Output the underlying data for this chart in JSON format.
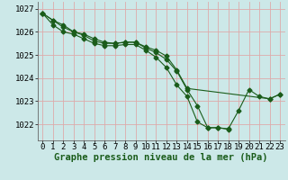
{
  "title": "Graphe pression niveau de la mer (hPa)",
  "bg_color": "#cce8e8",
  "grid_color": "#ddaaaa",
  "line_color": "#1a5c1a",
  "xlim": [
    -0.5,
    23.5
  ],
  "ylim": [
    1021.3,
    1027.3
  ],
  "yticks": [
    1022,
    1023,
    1024,
    1025,
    1026,
    1027
  ],
  "xticks": [
    0,
    1,
    2,
    3,
    4,
    5,
    6,
    7,
    8,
    9,
    10,
    11,
    12,
    13,
    14,
    15,
    16,
    17,
    18,
    19,
    20,
    21,
    22,
    23
  ],
  "series1_x": [
    0,
    1,
    2,
    3,
    4,
    5,
    6,
    7,
    8,
    9,
    10,
    11,
    12,
    13,
    14,
    15,
    16,
    17,
    18,
    19,
    20,
    21,
    22,
    23
  ],
  "series1_y": [
    1026.8,
    1026.5,
    1026.3,
    1026.0,
    1025.85,
    1025.6,
    1025.5,
    1025.5,
    1025.55,
    1025.55,
    1025.3,
    1025.1,
    1024.8,
    1024.3,
    1023.5,
    1022.8,
    1021.85,
    1021.85,
    1021.8,
    1022.6,
    1023.5,
    1023.2,
    1023.1,
    1023.3
  ],
  "series2_x": [
    0,
    1,
    2,
    3,
    4,
    5,
    6,
    7,
    8,
    9,
    10,
    11,
    12,
    13,
    14,
    15,
    16,
    17,
    18
  ],
  "series2_y": [
    1026.8,
    1026.3,
    1026.0,
    1025.9,
    1025.7,
    1025.5,
    1025.4,
    1025.4,
    1025.45,
    1025.45,
    1025.2,
    1024.9,
    1024.45,
    1023.7,
    1023.2,
    1022.1,
    1021.85,
    1021.85,
    1021.78
  ],
  "series3_x": [
    0,
    1,
    2,
    3,
    4,
    5,
    6,
    7,
    8,
    9,
    10,
    11,
    12,
    13,
    14,
    22,
    23
  ],
  "series3_y": [
    1026.8,
    1026.5,
    1026.2,
    1026.0,
    1025.9,
    1025.7,
    1025.55,
    1025.5,
    1025.55,
    1025.55,
    1025.35,
    1025.2,
    1024.95,
    1024.35,
    1023.55,
    1023.1,
    1023.3
  ],
  "xlabel_fontsize": 7.5,
  "tick_fontsize": 6.5
}
